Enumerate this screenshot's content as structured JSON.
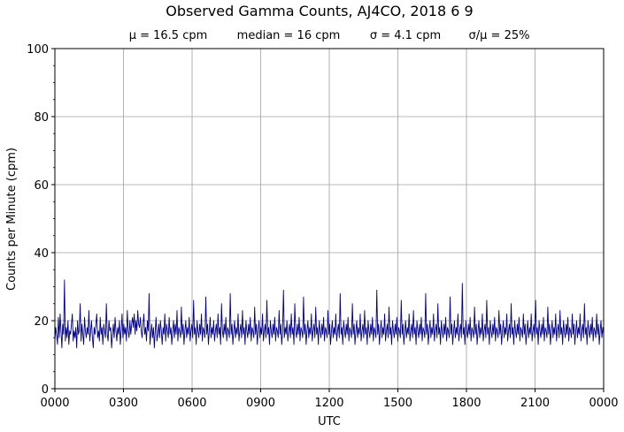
{
  "chart_data": {
    "type": "line",
    "title": "Observed Gamma Counts, AJ4CO, 2018 6 9",
    "stats": {
      "mean": "μ = 16.5 cpm",
      "median": "median = 16 cpm",
      "sigma": "σ = 4.1 cpm",
      "ratio": "σ/μ = 25%"
    },
    "xlabel": "UTC",
    "ylabel": "Counts per Minute (cpm)",
    "xlim": [
      0,
      1440
    ],
    "ylim": [
      0,
      100
    ],
    "x_ticks": [
      {
        "value": 0,
        "label": "0000"
      },
      {
        "value": 180,
        "label": "0300"
      },
      {
        "value": 360,
        "label": "0600"
      },
      {
        "value": 540,
        "label": "0900"
      },
      {
        "value": 720,
        "label": "1200"
      },
      {
        "value": 900,
        "label": "1500"
      },
      {
        "value": 1080,
        "label": "1800"
      },
      {
        "value": 1260,
        "label": "2100"
      },
      {
        "value": 1440,
        "label": "0000"
      }
    ],
    "y_ticks": [
      {
        "value": 0,
        "label": "0"
      },
      {
        "value": 20,
        "label": "20"
      },
      {
        "value": 40,
        "label": "40"
      },
      {
        "value": 60,
        "label": "60"
      },
      {
        "value": 80,
        "label": "80"
      },
      {
        "value": 100,
        "label": "100"
      }
    ],
    "grid": true,
    "line_color": "#00008b",
    "series": [
      {
        "values": [
          14,
          18,
          16,
          13,
          21,
          15,
          22,
          17,
          12,
          19,
          16,
          32,
          14,
          18,
          15,
          20,
          13,
          17,
          16,
          19,
          22,
          14,
          17,
          15,
          18,
          12,
          20,
          16,
          17,
          25,
          14,
          19,
          16,
          13,
          21,
          17,
          15,
          18,
          16,
          23,
          14,
          17,
          20,
          15,
          12,
          18,
          16,
          19,
          22,
          15,
          17,
          14,
          21,
          16,
          18,
          13,
          19,
          17,
          15,
          25,
          16,
          14,
          20,
          17,
          18,
          12,
          16,
          19,
          15,
          21,
          17,
          14,
          18,
          16,
          20,
          13,
          17,
          22,
          15,
          19,
          16,
          18,
          14,
          23,
          17,
          15,
          20,
          16,
          19,
          21,
          18,
          22,
          16,
          20,
          17,
          23,
          19,
          18,
          21,
          17,
          15,
          19,
          22,
          16,
          18,
          14,
          20,
          17,
          28,
          13,
          16,
          19,
          15,
          18,
          12,
          17,
          21,
          14,
          16,
          19,
          15,
          20,
          17,
          13,
          18,
          16,
          22,
          14,
          19,
          17,
          15,
          21,
          16,
          18,
          13,
          17,
          20,
          15,
          19,
          16,
          23,
          14,
          18,
          17,
          15,
          24,
          16,
          19,
          13,
          17,
          20,
          15,
          18,
          16,
          21,
          14,
          17,
          19,
          15,
          26,
          16,
          18,
          13,
          20,
          17,
          15,
          19,
          16,
          22,
          14,
          18,
          17,
          15,
          27,
          16,
          19,
          13,
          17,
          21,
          15,
          18,
          16,
          20,
          14,
          17,
          19,
          15,
          22,
          16,
          18,
          13,
          25,
          17,
          15,
          19,
          16,
          21,
          14,
          18,
          17,
          15,
          28,
          16,
          19,
          13,
          17,
          20,
          15,
          18,
          16,
          22,
          14,
          17,
          19,
          15,
          23,
          16,
          18,
          13,
          20,
          17,
          15,
          19,
          16,
          21,
          14,
          18,
          17,
          15,
          24,
          16,
          19,
          13,
          17,
          20,
          15,
          18,
          16,
          22,
          14,
          17,
          19,
          15,
          26,
          16,
          18,
          13,
          20,
          17,
          15,
          19,
          16,
          21,
          14,
          18,
          17,
          15,
          23,
          16,
          19,
          13,
          17,
          29,
          15,
          18,
          16,
          20,
          14,
          17,
          19,
          15,
          22,
          16,
          18,
          13,
          25,
          17,
          15,
          19,
          16,
          21,
          14,
          18,
          17,
          15,
          27,
          16,
          19,
          13,
          17,
          20,
          15,
          18,
          16,
          22,
          14,
          17,
          19,
          15,
          24,
          16,
          18,
          13,
          20,
          17,
          15,
          19,
          16,
          21,
          14,
          18,
          17,
          15,
          23,
          16,
          19,
          13,
          17,
          20,
          15,
          18,
          16,
          22,
          14,
          17,
          19,
          15,
          28,
          16,
          18,
          13,
          20,
          17,
          15,
          19,
          16,
          21,
          14,
          18,
          17,
          15,
          25,
          16,
          19,
          13,
          17,
          20,
          15,
          18,
          16,
          22,
          14,
          17,
          19,
          15,
          23,
          16,
          18,
          13,
          20,
          17,
          15,
          19,
          16,
          21,
          14,
          18,
          17,
          15,
          29,
          16,
          19,
          13,
          17,
          20,
          15,
          18,
          16,
          22,
          14,
          17,
          19,
          15,
          24,
          16,
          18,
          13,
          20,
          17,
          15,
          19,
          16,
          21,
          14,
          18,
          17,
          15,
          26,
          16,
          19,
          13,
          17,
          20,
          15,
          18,
          16,
          22,
          14,
          17,
          19,
          15,
          23,
          16,
          18,
          13,
          20,
          17,
          15,
          19,
          16,
          21,
          14,
          18,
          17,
          15,
          28,
          16,
          19,
          13,
          17,
          20,
          15,
          18,
          16,
          22,
          14,
          17,
          19,
          15,
          25,
          16,
          18,
          13,
          20,
          17,
          15,
          19,
          16,
          21,
          14,
          18,
          17,
          15,
          27,
          16,
          19,
          13,
          17,
          20,
          15,
          18,
          16,
          22,
          14,
          17,
          19,
          15,
          31,
          16,
          18,
          13,
          20,
          17,
          15,
          19,
          16,
          21,
          14,
          18,
          17,
          15,
          24,
          16,
          19,
          13,
          17,
          20,
          15,
          18,
          16,
          22,
          14,
          17,
          19,
          15,
          26,
          16,
          18,
          13,
          20,
          17,
          15,
          19,
          16,
          21,
          14,
          18,
          17,
          15,
          23,
          16,
          19,
          13,
          17,
          20,
          15,
          18,
          16,
          22,
          14,
          17,
          19,
          15,
          25,
          16,
          18,
          13,
          20,
          17,
          15,
          19,
          16,
          21,
          14,
          18,
          17,
          15,
          22,
          16,
          19,
          13,
          17,
          20,
          15,
          18,
          16,
          22,
          14,
          17,
          19,
          15,
          26,
          16,
          18,
          13,
          20,
          17,
          15,
          19,
          16,
          21,
          14,
          18,
          17,
          15,
          24,
          16,
          19,
          13,
          17,
          20,
          15,
          18,
          16,
          22,
          14,
          17,
          19,
          15,
          23,
          16,
          18,
          13,
          20,
          17,
          15,
          19,
          16,
          21,
          14,
          18,
          17,
          15,
          22,
          16,
          19,
          13,
          17,
          20,
          15,
          18,
          16,
          22,
          14,
          17,
          19,
          15,
          25,
          16,
          18,
          13,
          20,
          17,
          15,
          19,
          16,
          21,
          14,
          18,
          17,
          15,
          22,
          16,
          19,
          13,
          17,
          20,
          15,
          18,
          16
        ]
      }
    ]
  }
}
